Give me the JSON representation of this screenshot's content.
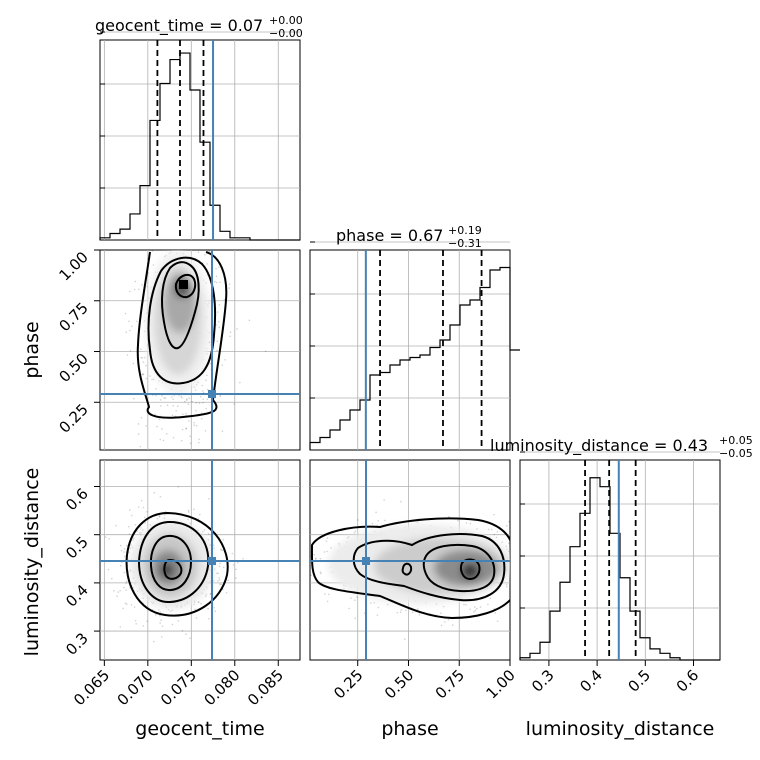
{
  "chart_data": {
    "type": "corner",
    "parameters": [
      "geocent_time",
      "phase",
      "luminosity_distance"
    ],
    "titles": [
      {
        "text": "geocent_time = 0.07",
        "sup": "+0.00",
        "sub": "−0.00"
      },
      {
        "text": "phase = 0.67",
        "sup": "+0.19",
        "sub": "−0.31"
      },
      {
        "text": "luminosity_distance = 0.43",
        "sup": "+0.05",
        "sub": "−0.05"
      }
    ],
    "ranges": {
      "geocent_time": [
        0.0645,
        0.0875
      ],
      "phase": [
        0.015,
        1.0
      ],
      "luminosity_distance": [
        0.24,
        0.655
      ]
    },
    "ticks": {
      "geocent_time": [
        "0.065",
        "0.070",
        "0.075",
        "0.080",
        "0.085"
      ],
      "phase": [
        "0.25",
        "0.50",
        "0.75",
        "1.00"
      ],
      "luminosity_distance": [
        "0.3",
        "0.4",
        "0.5",
        "0.6"
      ]
    },
    "tick_values": {
      "geocent_time": [
        0.065,
        0.07,
        0.075,
        0.08,
        0.085
      ],
      "phase": [
        0.25,
        0.5,
        0.75,
        1.0
      ],
      "luminosity_distance": [
        0.3,
        0.4,
        0.5,
        0.6
      ]
    },
    "truths": {
      "geocent_time": 0.0775,
      "phase": 0.29,
      "luminosity_distance": 0.445
    },
    "quantiles": {
      "geocent_time": [
        0.0711,
        0.0737,
        0.0764
      ],
      "phase": [
        0.36,
        0.67,
        0.86
      ],
      "luminosity_distance": [
        0.375,
        0.425,
        0.48
      ]
    },
    "histograms": {
      "geocent_time": {
        "edges_start": 0.0645,
        "bin_width": 0.00115,
        "counts": [
          1,
          3,
          5,
          12,
          25,
          55,
          72,
          83,
          86,
          69,
          45,
          16,
          4,
          1,
          1,
          0,
          0,
          0,
          0,
          0
        ],
        "ylim": [
          0,
          92
        ]
      },
      "phase": {
        "edges_start": 0.015,
        "bin_width": 0.04925,
        "counts": [
          3,
          5,
          8,
          12,
          16,
          20,
          30,
          31,
          34,
          36,
          37,
          38,
          41,
          44,
          50,
          58,
          60,
          65,
          72,
          73,
          40
        ],
        "ylim": [
          0,
          80
        ]
      },
      "luminosity_distance": {
        "edges_start": 0.24,
        "bin_width": 0.02075,
        "counts": [
          1,
          3,
          8,
          22,
          35,
          51,
          66,
          82,
          78,
          57,
          37,
          22,
          10,
          5,
          3,
          1,
          0,
          0,
          0,
          0
        ],
        "ylim": [
          0,
          90
        ]
      }
    },
    "grid": true
  }
}
